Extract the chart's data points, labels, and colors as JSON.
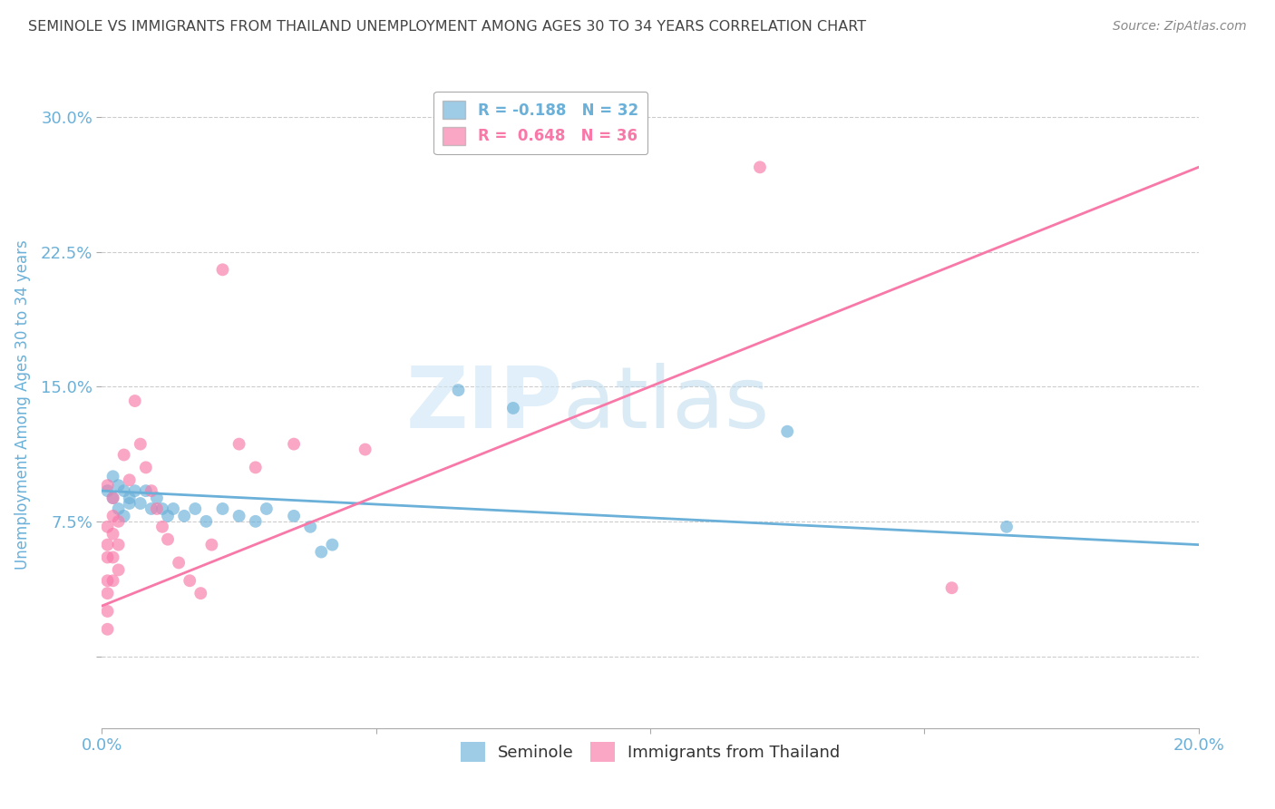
{
  "title": "SEMINOLE VS IMMIGRANTS FROM THAILAND UNEMPLOYMENT AMONG AGES 30 TO 34 YEARS CORRELATION CHART",
  "source": "Source: ZipAtlas.com",
  "ylabel": "Unemployment Among Ages 30 to 34 years",
  "xlim": [
    0.0,
    0.2
  ],
  "ylim": [
    -0.04,
    0.32
  ],
  "yticks": [
    0.0,
    0.075,
    0.15,
    0.225,
    0.3
  ],
  "ytick_labels": [
    "",
    "7.5%",
    "15.0%",
    "22.5%",
    "30.0%"
  ],
  "legend_entries": [
    {
      "label": "R = -0.188   N = 32",
      "color": "#6ab0d8"
    },
    {
      "label": "R =  0.648   N = 36",
      "color": "#f878a8"
    }
  ],
  "seminole_color": "#6ab0d8",
  "thailand_color": "#f878a8",
  "seminole_points": [
    [
      0.001,
      0.092
    ],
    [
      0.002,
      0.1
    ],
    [
      0.002,
      0.088
    ],
    [
      0.003,
      0.095
    ],
    [
      0.003,
      0.082
    ],
    [
      0.004,
      0.092
    ],
    [
      0.004,
      0.078
    ],
    [
      0.005,
      0.088
    ],
    [
      0.005,
      0.085
    ],
    [
      0.006,
      0.092
    ],
    [
      0.007,
      0.085
    ],
    [
      0.008,
      0.092
    ],
    [
      0.009,
      0.082
    ],
    [
      0.01,
      0.088
    ],
    [
      0.011,
      0.082
    ],
    [
      0.012,
      0.078
    ],
    [
      0.013,
      0.082
    ],
    [
      0.015,
      0.078
    ],
    [
      0.017,
      0.082
    ],
    [
      0.019,
      0.075
    ],
    [
      0.022,
      0.082
    ],
    [
      0.025,
      0.078
    ],
    [
      0.028,
      0.075
    ],
    [
      0.03,
      0.082
    ],
    [
      0.035,
      0.078
    ],
    [
      0.038,
      0.072
    ],
    [
      0.04,
      0.058
    ],
    [
      0.042,
      0.062
    ],
    [
      0.065,
      0.148
    ],
    [
      0.075,
      0.138
    ],
    [
      0.125,
      0.125
    ],
    [
      0.165,
      0.072
    ]
  ],
  "thailand_points": [
    [
      0.001,
      0.095
    ],
    [
      0.001,
      0.072
    ],
    [
      0.001,
      0.062
    ],
    [
      0.001,
      0.055
    ],
    [
      0.001,
      0.042
    ],
    [
      0.001,
      0.035
    ],
    [
      0.001,
      0.025
    ],
    [
      0.001,
      0.015
    ],
    [
      0.002,
      0.088
    ],
    [
      0.002,
      0.078
    ],
    [
      0.002,
      0.068
    ],
    [
      0.002,
      0.055
    ],
    [
      0.002,
      0.042
    ],
    [
      0.003,
      0.075
    ],
    [
      0.003,
      0.062
    ],
    [
      0.003,
      0.048
    ],
    [
      0.004,
      0.112
    ],
    [
      0.005,
      0.098
    ],
    [
      0.006,
      0.142
    ],
    [
      0.007,
      0.118
    ],
    [
      0.008,
      0.105
    ],
    [
      0.009,
      0.092
    ],
    [
      0.01,
      0.082
    ],
    [
      0.011,
      0.072
    ],
    [
      0.012,
      0.065
    ],
    [
      0.014,
      0.052
    ],
    [
      0.016,
      0.042
    ],
    [
      0.018,
      0.035
    ],
    [
      0.02,
      0.062
    ],
    [
      0.022,
      0.215
    ],
    [
      0.025,
      0.118
    ],
    [
      0.028,
      0.105
    ],
    [
      0.035,
      0.118
    ],
    [
      0.048,
      0.115
    ],
    [
      0.12,
      0.272
    ],
    [
      0.155,
      0.038
    ]
  ],
  "background_color": "#ffffff",
  "grid_color": "#cccccc",
  "title_color": "#444444",
  "tick_color": "#6ab0d8",
  "seminole_line": [
    0.0,
    0.092,
    0.2,
    0.062
  ],
  "thailand_line": [
    0.0,
    0.028,
    0.2,
    0.272
  ]
}
